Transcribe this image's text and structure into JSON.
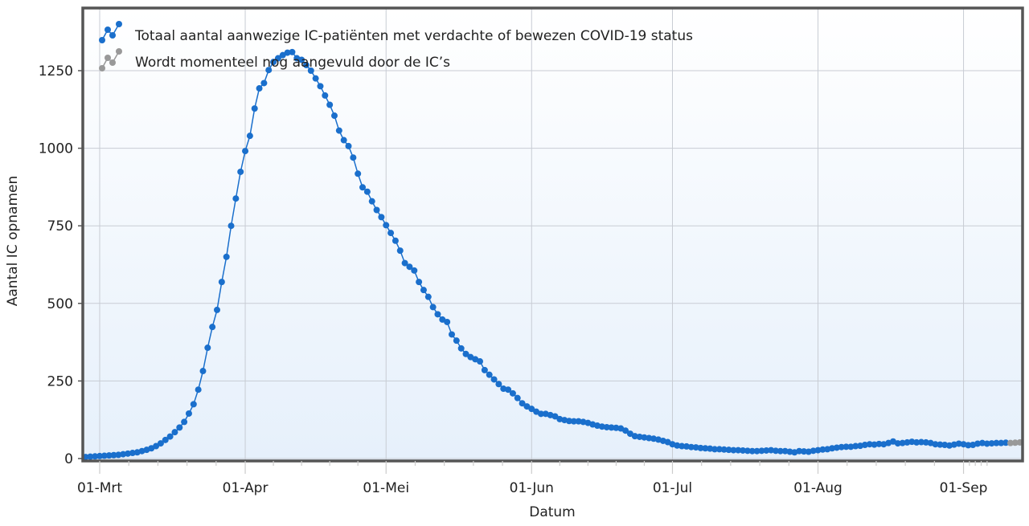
{
  "chart_data": {
    "type": "line",
    "title": "",
    "xlabel": "Datum",
    "ylabel": "Aantal IC opnamen",
    "ylim": [
      0,
      1450
    ],
    "yticks": [
      "0",
      "250",
      "500",
      "750",
      "1000",
      "1250"
    ],
    "xticks": [
      "01-Mrt",
      "01-Apr",
      "01-Mei",
      "01-Jun",
      "01-Jul",
      "01-Aug",
      "01-Sep"
    ],
    "grid": true,
    "legend_position": "top-left",
    "series": [
      {
        "name": "Totaal aantal aanwezige IC-patiënten met verdachte of bewezen COVID-19 status",
        "color": "#1a6fcc",
        "x": [
          "27-Feb",
          "28-Feb",
          "29-Feb",
          "01-Mrt",
          "02-Mrt",
          "03-Mrt",
          "04-Mrt",
          "05-Mrt",
          "06-Mrt",
          "07-Mrt",
          "08-Mrt",
          "09-Mrt",
          "10-Mrt",
          "11-Mrt",
          "12-Mrt",
          "13-Mrt",
          "14-Mrt",
          "15-Mrt",
          "16-Mrt",
          "17-Mrt",
          "18-Mrt",
          "19-Mrt",
          "20-Mrt",
          "21-Mrt",
          "22-Mrt",
          "23-Mrt",
          "24-Mrt",
          "25-Mrt",
          "26-Mrt",
          "27-Mrt",
          "28-Mrt",
          "29-Mrt",
          "30-Mrt",
          "31-Mrt",
          "01-Apr",
          "02-Apr",
          "03-Apr",
          "04-Apr",
          "05-Apr",
          "06-Apr",
          "07-Apr",
          "08-Apr",
          "09-Apr",
          "10-Apr",
          "11-Apr",
          "12-Apr",
          "13-Apr",
          "14-Apr",
          "15-Apr",
          "16-Apr",
          "17-Apr",
          "18-Apr",
          "19-Apr",
          "20-Apr",
          "21-Apr",
          "22-Apr",
          "23-Apr",
          "24-Apr",
          "25-Apr",
          "26-Apr",
          "27-Apr",
          "28-Apr",
          "29-Apr",
          "30-Apr",
          "01-Mei",
          "02-Mei",
          "03-Mei",
          "04-Mei",
          "05-Mei",
          "06-Mei",
          "07-Mei",
          "08-Mei",
          "09-Mei",
          "10-Mei",
          "11-Mei",
          "12-Mei",
          "13-Mei",
          "14-Mei",
          "15-Mei",
          "16-Mei",
          "17-Mei",
          "18-Mei",
          "19-Mei",
          "20-Mei",
          "21-Mei",
          "22-Mei",
          "23-Mei",
          "24-Mei",
          "25-Mei",
          "26-Mei",
          "27-Mei",
          "28-Mei",
          "29-Mei",
          "30-Mei",
          "31-Mei",
          "01-Jun",
          "02-Jun",
          "03-Jun",
          "04-Jun",
          "05-Jun",
          "06-Jun",
          "07-Jun",
          "08-Jun",
          "09-Jun",
          "10-Jun",
          "11-Jun",
          "12-Jun",
          "13-Jun",
          "14-Jun",
          "15-Jun",
          "16-Jun",
          "17-Jun",
          "18-Jun",
          "19-Jun",
          "20-Jun",
          "21-Jun",
          "22-Jun",
          "23-Jun",
          "24-Jun",
          "25-Jun",
          "26-Jun",
          "27-Jun",
          "28-Jun",
          "29-Jun",
          "30-Jun",
          "01-Jul",
          "02-Jul",
          "03-Jul",
          "04-Jul",
          "05-Jul",
          "06-Jul",
          "07-Jul",
          "08-Jul",
          "09-Jul",
          "10-Jul",
          "11-Jul",
          "12-Jul",
          "13-Jul",
          "14-Jul",
          "15-Jul",
          "16-Jul",
          "17-Jul",
          "18-Jul",
          "19-Jul",
          "20-Jul",
          "21-Jul",
          "22-Jul",
          "23-Jul",
          "24-Jul",
          "25-Jul",
          "26-Jul",
          "27-Jul",
          "28-Jul",
          "29-Jul",
          "30-Jul",
          "31-Jul",
          "01-Aug",
          "02-Aug",
          "03-Aug",
          "04-Aug",
          "05-Aug",
          "06-Aug",
          "07-Aug",
          "08-Aug",
          "09-Aug",
          "10-Aug",
          "11-Aug",
          "12-Aug",
          "13-Aug",
          "14-Aug",
          "15-Aug",
          "16-Aug",
          "17-Aug",
          "18-Aug",
          "19-Aug",
          "20-Aug",
          "21-Aug",
          "22-Aug",
          "23-Aug",
          "24-Aug",
          "25-Aug",
          "26-Aug",
          "27-Aug",
          "28-Aug",
          "29-Aug",
          "30-Aug",
          "31-Aug",
          "01-Sep",
          "02-Sep",
          "03-Sep",
          "04-Sep",
          "05-Sep",
          "06-Sep",
          "07-Sep",
          "08-Sep",
          "09-Sep",
          "10-Sep"
        ],
        "values": [
          5,
          6,
          7,
          8,
          9,
          10,
          11,
          12,
          14,
          16,
          18,
          20,
          24,
          28,
          33,
          40,
          49,
          60,
          71,
          85,
          100,
          118,
          145,
          175,
          222,
          282,
          357,
          424,
          479,
          569,
          650,
          750,
          838,
          924,
          991,
          1040,
          1128,
          1193,
          1210,
          1252,
          1278,
          1290,
          1300,
          1308,
          1310,
          1290,
          1285,
          1268,
          1250,
          1225,
          1200,
          1170,
          1140,
          1105,
          1057,
          1026,
          1007,
          970,
          918,
          874,
          860,
          829,
          801,
          778,
          752,
          727,
          702,
          670,
          630,
          618,
          606,
          569,
          543,
          521,
          488,
          465,
          448,
          440,
          400,
          380,
          355,
          337,
          327,
          320,
          313,
          285,
          270,
          255,
          240,
          225,
          222,
          210,
          195,
          178,
          168,
          160,
          151,
          144,
          144,
          140,
          136,
          127,
          124,
          121,
          120,
          120,
          118,
          115,
          110,
          106,
          103,
          101,
          100,
          99,
          97,
          90,
          80,
          72,
          70,
          68,
          66,
          64,
          61,
          57,
          53,
          46,
          42,
          40,
          39,
          37,
          36,
          34,
          33,
          32,
          30,
          30,
          29,
          28,
          27,
          27,
          26,
          25,
          24,
          24,
          25,
          26,
          27,
          25,
          24,
          24,
          22,
          20,
          24,
          23,
          22,
          25,
          27,
          29,
          30,
          33,
          35,
          37,
          38,
          38,
          40,
          41,
          44,
          46,
          45,
          47,
          46,
          50,
          55,
          49,
          50,
          52,
          54,
          52,
          53,
          52,
          50,
          46,
          45,
          44,
          42,
          45,
          48,
          46,
          43,
          44,
          48,
          50,
          48,
          49,
          50,
          50,
          51
        ]
      },
      {
        "name": "Wordt momenteel nog aangevuld door de IC’s",
        "color": "#999999",
        "x": [
          "11-Sep",
          "12-Sep",
          "13-Sep"
        ],
        "values": [
          50,
          51,
          52
        ]
      }
    ]
  }
}
